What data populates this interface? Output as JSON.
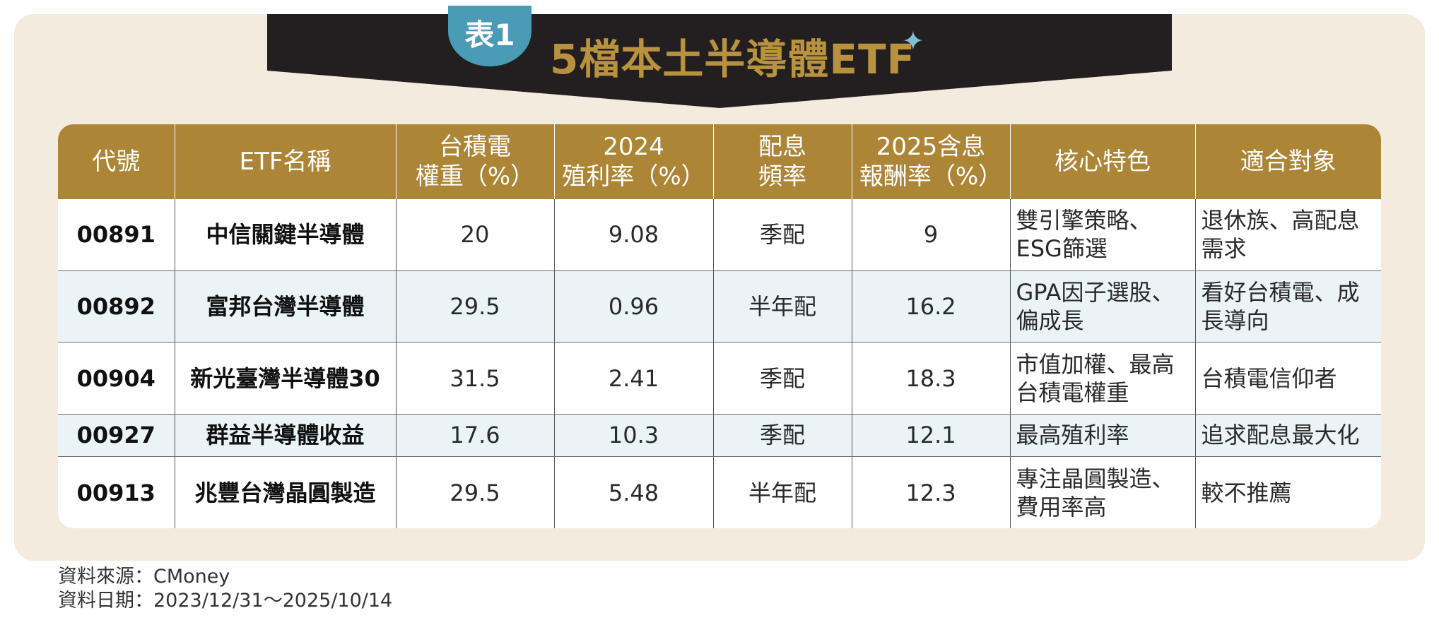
{
  "badge": "表1",
  "title": "5檔本土半導體ETF",
  "table": {
    "headers": [
      [
        "代號"
      ],
      [
        "ETF名稱"
      ],
      [
        "台積電",
        "權重（%）"
      ],
      [
        "2024",
        "殖利率（%）"
      ],
      [
        "配息",
        "頻率"
      ],
      [
        "2025含息",
        "報酬率（%）"
      ],
      [
        "核心特色"
      ],
      [
        "適合對象"
      ]
    ],
    "rows": [
      {
        "code": "00891",
        "name": "中信關鍵半導體",
        "tsmc_weight": "20",
        "yield_2024": "9.08",
        "freq": "季配",
        "return_2025": "9",
        "feature": [
          "雙引擎策略、",
          "ESG篩選"
        ],
        "target": [
          "退休族、高配息",
          "需求"
        ]
      },
      {
        "code": "00892",
        "name": "富邦台灣半導體",
        "tsmc_weight": "29.5",
        "yield_2024": "0.96",
        "freq": "半年配",
        "return_2025": "16.2",
        "feature": [
          "GPA因子選股、",
          "偏成長"
        ],
        "target": [
          "看好台積電、成",
          "長導向"
        ]
      },
      {
        "code": "00904",
        "name": "新光臺灣半導體30",
        "tsmc_weight": "31.5",
        "yield_2024": "2.41",
        "freq": "季配",
        "return_2025": "18.3",
        "feature": [
          "市值加權、最高",
          "台積電權重"
        ],
        "target": [
          "台積電信仰者"
        ]
      },
      {
        "code": "00927",
        "name": "群益半導體收益",
        "tsmc_weight": "17.6",
        "yield_2024": "10.3",
        "freq": "季配",
        "return_2025": "12.1",
        "feature": [
          "最高殖利率"
        ],
        "target": [
          "追求配息最大化"
        ]
      },
      {
        "code": "00913",
        "name": "兆豐台灣晶圓製造",
        "tsmc_weight": "29.5",
        "yield_2024": "5.48",
        "freq": "半年配",
        "return_2025": "12.3",
        "feature": [
          "專注晶圓製造、",
          "費用率高"
        ],
        "target": [
          "較不推薦"
        ]
      }
    ]
  },
  "source": "資料來源：CMoney",
  "date_range": "資料日期：2023/12/31～2025/10/14",
  "colors": {
    "header_gold": "#ad8536",
    "title_gold": "#b8923e",
    "banner_black": "#231f20",
    "badge_blue": "#4a9cb6",
    "panel_beige": "#f4ebdf",
    "alt_row": "#eaf4f7"
  },
  "icons": [
    "sparkle-icon"
  ]
}
